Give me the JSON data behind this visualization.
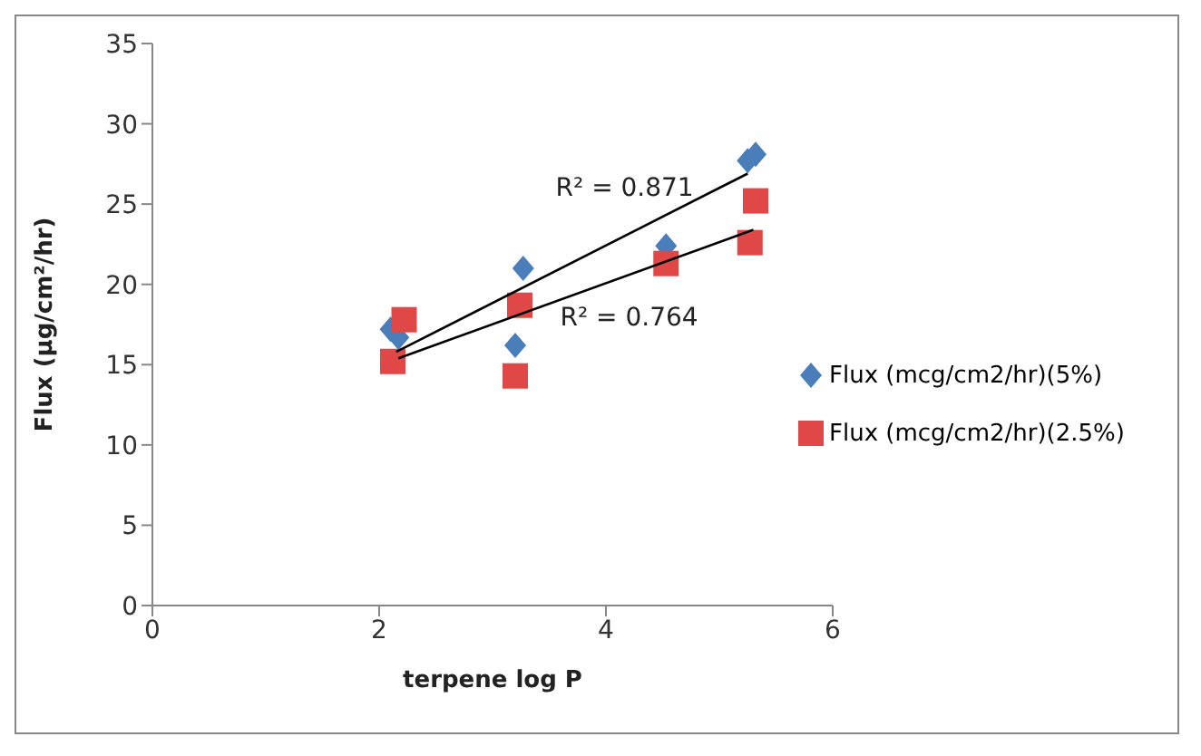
{
  "chart_data": {
    "type": "scatter",
    "xlabel": "terpene log P",
    "ylabel": "Flux (µg/cm²/hr)",
    "xlim": [
      0,
      6
    ],
    "xticks": [
      0,
      2,
      4,
      6
    ],
    "ylim": [
      0,
      35
    ],
    "yticks": [
      0,
      5,
      10,
      15,
      20,
      25,
      30,
      35
    ],
    "legend": "right",
    "series": [
      {
        "name": "Flux (mcg/cm2/hr)(5%)",
        "color": "#4a7ebb",
        "marker": "diamond",
        "x": [
          2.1,
          2.17,
          3.27,
          3.2,
          4.53,
          5.25,
          5.32
        ],
        "values": [
          17.2,
          16.7,
          21,
          16.2,
          22.4,
          27.7,
          28.1
        ]
      },
      {
        "name": "Flux (mcg/cm2/hr)(2.5%)",
        "color": "#e04848",
        "marker": "square",
        "x": [
          2.22,
          2.12,
          3.24,
          3.2,
          4.53,
          5.27,
          5.32
        ],
        "values": [
          17.8,
          15.2,
          18.7,
          14.3,
          21.3,
          22.6,
          25.2
        ]
      },
      {
        "type": "line",
        "color": "#000000",
        "marker": "none",
        "x": [
          2.15,
          5.25
        ],
        "values": [
          15.8,
          26.9
        ]
      },
      {
        "type": "line",
        "color": "#000000",
        "marker": "none",
        "x": [
          2.17,
          5.3
        ],
        "values": [
          15.4,
          23.4
        ]
      }
    ],
    "annotations": [
      "R² = 0.871",
      "R² = 0.764"
    ]
  }
}
